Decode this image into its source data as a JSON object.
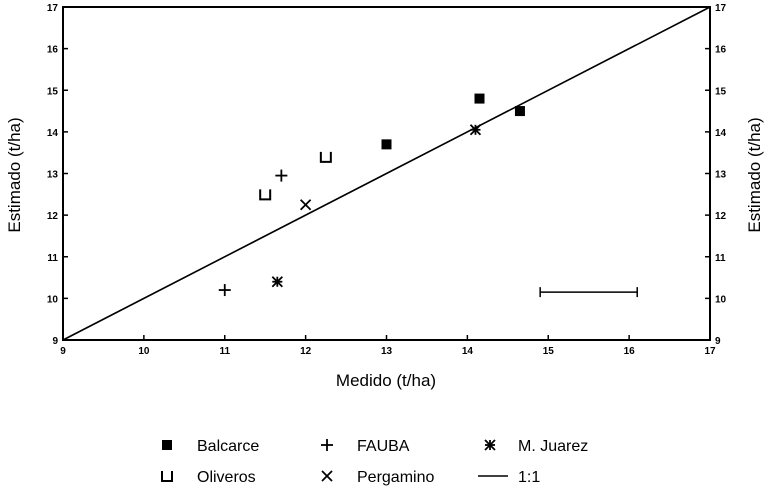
{
  "chart_data": {
    "type": "scatter",
    "xlabel": "Medido (t/ha)",
    "ylabel": "Estimado (t/ha)",
    "ylabel_right": "Estimado (t/ha)",
    "xlim": [
      9,
      17
    ],
    "ylim": [
      9,
      17
    ],
    "x_ticks": [
      9,
      10,
      11,
      12,
      13,
      14,
      15,
      16,
      17
    ],
    "y_ticks": [
      9,
      10,
      11,
      12,
      13,
      14,
      15,
      16,
      17
    ],
    "grid": false,
    "legend_position": "bottom",
    "series": [
      {
        "name": "Balcarce",
        "marker": "filled-square",
        "points": [
          [
            13.0,
            13.7
          ],
          [
            14.15,
            14.8
          ],
          [
            14.65,
            14.5
          ]
        ]
      },
      {
        "name": "FAUBA",
        "marker": "plus",
        "points": [
          [
            11.0,
            10.2
          ],
          [
            11.7,
            12.95
          ]
        ]
      },
      {
        "name": "M. Juarez",
        "marker": "asterisk",
        "points": [
          [
            11.65,
            10.4
          ],
          [
            14.1,
            14.05
          ]
        ]
      },
      {
        "name": "Oliveros",
        "marker": "open-square",
        "points": [
          [
            11.5,
            12.5
          ],
          [
            12.25,
            13.4
          ]
        ]
      },
      {
        "name": "Pergamino",
        "marker": "cross",
        "points": [
          [
            12.0,
            12.25
          ]
        ]
      }
    ],
    "reference_line": {
      "name": "1:1",
      "from": [
        9,
        9
      ],
      "to": [
        17,
        17
      ]
    },
    "error_bar": {
      "x_from": 14.9,
      "x_to": 16.1,
      "y": 10.15
    }
  }
}
